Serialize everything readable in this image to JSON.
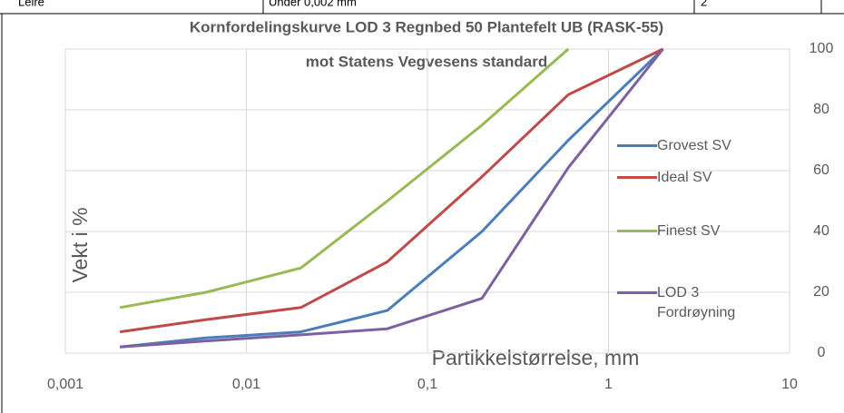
{
  "table_fragment": [
    "Leire",
    "Under 0,002 mm",
    "2"
  ],
  "chart_data": {
    "type": "line",
    "title": "Kornfordelingskurve LOD 3 Regnbed 50 Plantefelt UB (RASK-55)",
    "subtitle": "mot Statens Vegvesens standard",
    "x_label": "Partikkelstørrelse, mm",
    "y_label": "Vekt i %",
    "x": [
      0.002,
      0.006,
      0.02,
      0.06,
      0.2,
      0.6,
      2
    ],
    "series": [
      {
        "name": "Grovest SV",
        "color": "#4a7ebb",
        "values": [
          2,
          5,
          7,
          14,
          40,
          70,
          100
        ]
      },
      {
        "name": "Ideal SV",
        "color": "#be4b48",
        "values": [
          7,
          11,
          15,
          30,
          58,
          85,
          100
        ]
      },
      {
        "name": "Finest SV",
        "color": "#98b954",
        "values": [
          15,
          20,
          28,
          50,
          75,
          100,
          null
        ]
      },
      {
        "name": "LOD 3 Fordrøyning",
        "color": "#7d60a0",
        "values": [
          2,
          4,
          6,
          8,
          18,
          61,
          100
        ]
      }
    ],
    "xlim": [
      0.001,
      10
    ],
    "xticks": [
      {
        "value": 0.001,
        "label": "0,001"
      },
      {
        "value": 0.01,
        "label": "0,01"
      },
      {
        "value": 0.1,
        "label": "0,1"
      },
      1,
      10
    ],
    "x_log": true,
    "ylim": [
      0,
      100
    ],
    "yticks": [
      0,
      20,
      40,
      60,
      80,
      100
    ],
    "y_axis_side": "right",
    "grid": true,
    "legend": "right"
  }
}
